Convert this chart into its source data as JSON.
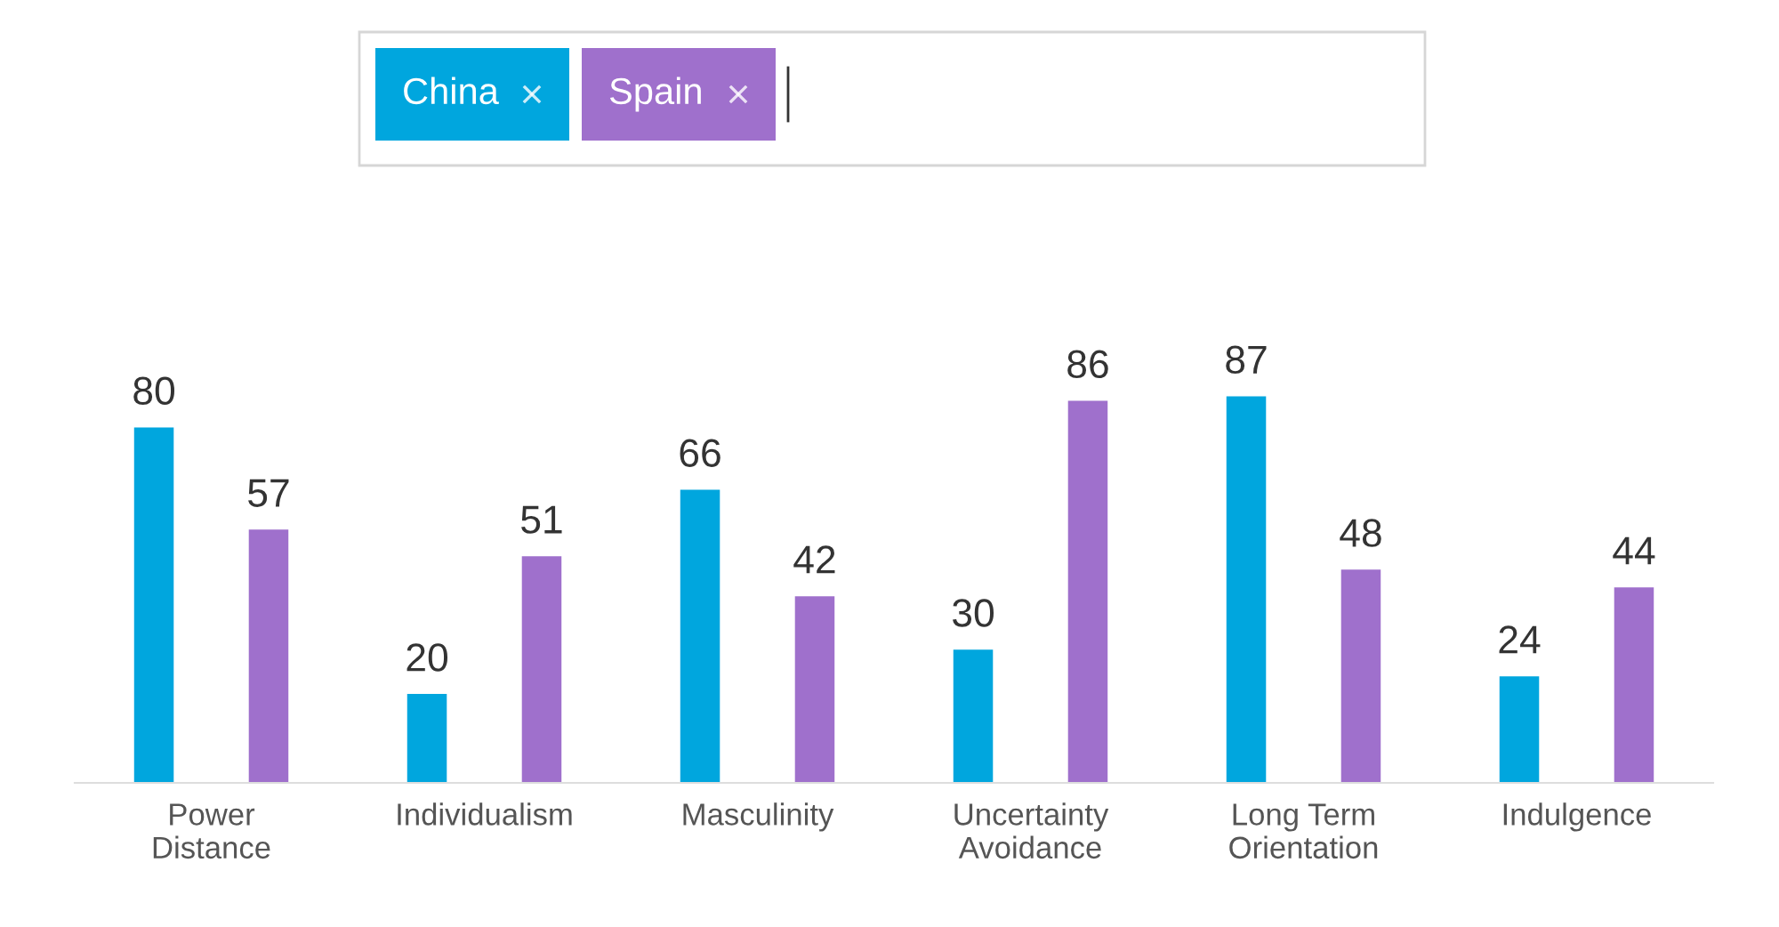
{
  "chart_data": {
    "type": "bar",
    "categories": [
      "Power Distance",
      "Individualism",
      "Masculinity",
      "Uncertainty Avoidance",
      "Long Term Orientation",
      "Indulgence"
    ],
    "series": [
      {
        "name": "China",
        "color": "#00a6de",
        "values": [
          80,
          20,
          66,
          30,
          87,
          24
        ]
      },
      {
        "name": "Spain",
        "color": "#9f70cc",
        "values": [
          57,
          51,
          42,
          86,
          48,
          44
        ]
      }
    ],
    "data_labels": true,
    "legend": "top",
    "grid": false
  }
}
